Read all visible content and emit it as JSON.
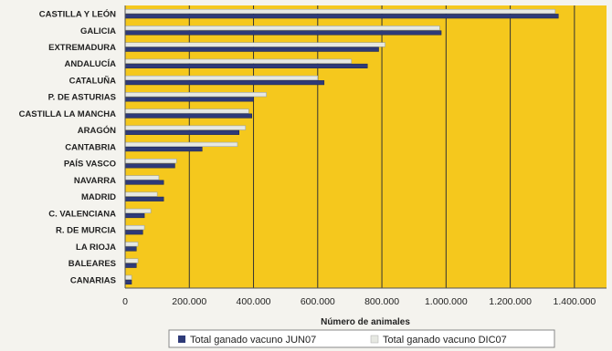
{
  "chart_data": {
    "type": "bar",
    "orientation": "horizontal",
    "categories": [
      "CASTILLA Y LEÓN",
      "GALICIA",
      "EXTREMADURA",
      "ANDALUCÍA",
      "CATALUÑA",
      "P. DE ASTURIAS",
      "CASTILLA LA MANCHA",
      "ARAGÓN",
      "CANTABRIA",
      "PAÍS VASCO",
      "NAVARRA",
      "MADRID",
      "C. VALENCIANA",
      "R. DE MURCIA",
      "LA RIOJA",
      "BALEARES",
      "CANARIAS"
    ],
    "series": [
      {
        "name": "Total ganado vacuno JUN07",
        "color": "#2e3a78",
        "values": [
          1350000,
          985000,
          790000,
          755000,
          620000,
          400000,
          395000,
          355000,
          240000,
          155000,
          120000,
          120000,
          60000,
          55000,
          35000,
          35000,
          20000
        ]
      },
      {
        "name": "Total ganado vacuno DIC07",
        "color": "#e6e8e2",
        "values": [
          1340000,
          980000,
          810000,
          705000,
          600000,
          440000,
          385000,
          375000,
          350000,
          160000,
          105000,
          100000,
          80000,
          60000,
          40000,
          40000,
          20000
        ]
      }
    ],
    "xlabel": "Número de animales",
    "xticks": [
      "0",
      "200.000",
      "400.000",
      "600.000",
      "800.000",
      "1.000.000",
      "1.200.000",
      "1.400.000"
    ],
    "xlim": [
      0,
      1500000
    ],
    "grid": true,
    "legend_position": "bottom",
    "plot_background": "#f5c81d"
  }
}
